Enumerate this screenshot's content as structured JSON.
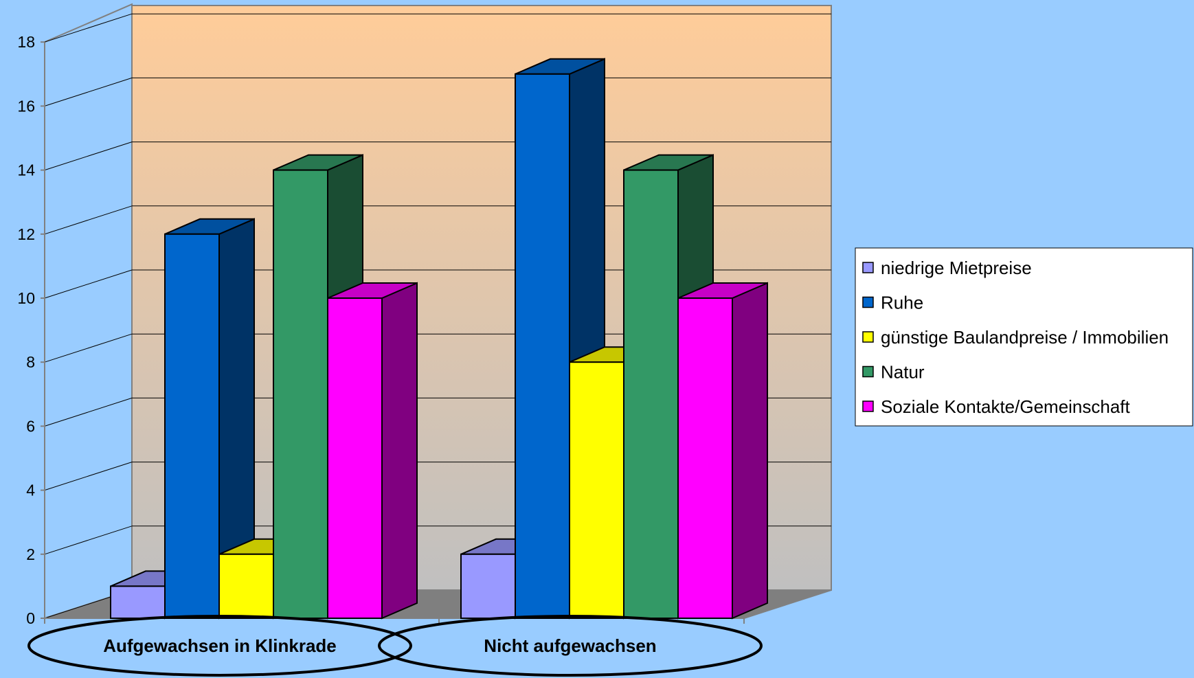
{
  "chart_data": {
    "type": "bar",
    "categories": [
      "Aufgewachsen in Klinkrade",
      "Nicht aufgewachsen"
    ],
    "series": [
      {
        "name": "niedrige Mietpreise",
        "values": [
          1,
          2
        ],
        "color": "#9999ff"
      },
      {
        "name": "Ruhe",
        "values": [
          12,
          17
        ],
        "color": "#0066cc"
      },
      {
        "name": "günstige Baulandpreise / Immobilien",
        "values": [
          2,
          8
        ],
        "color": "#ffff00"
      },
      {
        "name": "Natur",
        "values": [
          14,
          14
        ],
        "color": "#339966"
      },
      {
        "name": "Soziale Kontakte/Gemeinschaft",
        "values": [
          10,
          10
        ],
        "color": "#ff00ff"
      }
    ],
    "yticks": [
      "0",
      "2",
      "4",
      "6",
      "8",
      "10",
      "12",
      "14",
      "16",
      "18"
    ],
    "ylim": [
      0,
      18
    ],
    "grid": true,
    "legend_position": "right",
    "style": "3d-clustered-column"
  }
}
